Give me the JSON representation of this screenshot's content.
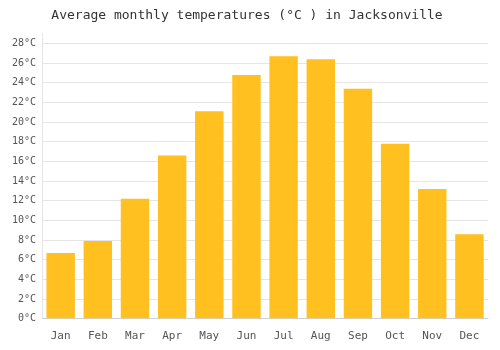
{
  "chart_data": {
    "type": "bar",
    "title": "Average monthly temperatures (°C ) in Jacksonville",
    "categories": [
      "Jan",
      "Feb",
      "Mar",
      "Apr",
      "May",
      "Jun",
      "Jul",
      "Aug",
      "Sep",
      "Oct",
      "Nov",
      "Dec"
    ],
    "values": [
      6.7,
      7.9,
      12.2,
      16.6,
      21.1,
      24.8,
      26.7,
      26.4,
      23.4,
      17.8,
      13.2,
      8.6
    ],
    "color": "#FFC020",
    "ylim": [
      0,
      29
    ],
    "yticks": [
      {
        "value": 0,
        "label": "0°C"
      },
      {
        "value": 2,
        "label": "2°C"
      },
      {
        "value": 4,
        "label": "4°C"
      },
      {
        "value": 6,
        "label": "6°C"
      },
      {
        "value": 8,
        "label": "8°C"
      },
      {
        "value": 10,
        "label": "10°C"
      },
      {
        "value": 12,
        "label": "12°C"
      },
      {
        "value": 14,
        "label": "14°C"
      },
      {
        "value": 16,
        "label": "16°C"
      },
      {
        "value": 18,
        "label": "18°C"
      },
      {
        "value": 20,
        "label": "20°C"
      },
      {
        "value": 22,
        "label": "22°C"
      },
      {
        "value": 24,
        "label": "24°C"
      },
      {
        "value": 26,
        "label": "26°C"
      },
      {
        "value": 28,
        "label": "28°C"
      }
    ],
    "grid": true
  }
}
